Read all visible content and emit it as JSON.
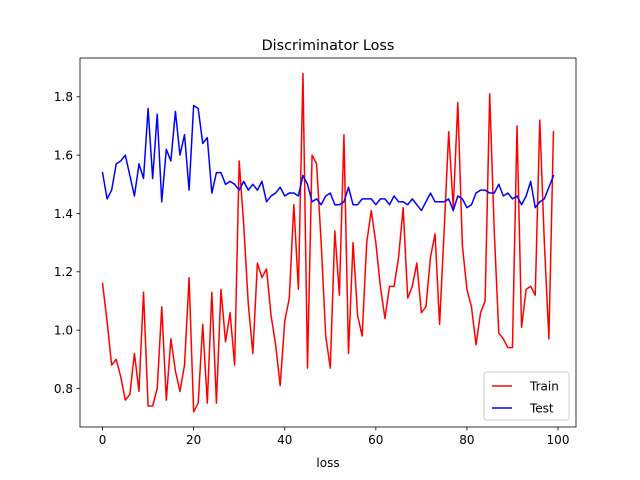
{
  "chart_data": {
    "type": "line",
    "title": "Discriminator Loss",
    "xlabel": "loss",
    "ylabel": "",
    "xlim": [
      -4.95,
      103.95
    ],
    "ylim": [
      0.668,
      1.933
    ],
    "xticks": [
      0,
      20,
      40,
      60,
      80,
      100
    ],
    "yticks": [
      0.8,
      1.0,
      1.2,
      1.4,
      1.6,
      1.8
    ],
    "ytick_labels": [
      "0.8",
      "1.0",
      "1.2",
      "1.4",
      "1.6",
      "1.8"
    ],
    "grid": false,
    "legend_position": "lower right",
    "x": [
      0,
      1,
      2,
      3,
      4,
      5,
      6,
      7,
      8,
      9,
      10,
      11,
      12,
      13,
      14,
      15,
      16,
      17,
      18,
      19,
      20,
      21,
      22,
      23,
      24,
      25,
      26,
      27,
      28,
      29,
      30,
      31,
      32,
      33,
      34,
      35,
      36,
      37,
      38,
      39,
      40,
      41,
      42,
      43,
      44,
      45,
      46,
      47,
      48,
      49,
      50,
      51,
      52,
      53,
      54,
      55,
      56,
      57,
      58,
      59,
      60,
      61,
      62,
      63,
      64,
      65,
      66,
      67,
      68,
      69,
      70,
      71,
      72,
      73,
      74,
      75,
      76,
      77,
      78,
      79,
      80,
      81,
      82,
      83,
      84,
      85,
      86,
      87,
      88,
      89,
      90,
      91,
      92,
      93,
      94,
      95,
      96,
      97,
      98,
      99
    ],
    "series": [
      {
        "name": "Train",
        "color": "#ff0000",
        "values": [
          1.16,
          1.03,
          0.88,
          0.9,
          0.84,
          0.76,
          0.78,
          0.92,
          0.79,
          1.13,
          0.74,
          0.74,
          0.8,
          1.08,
          0.76,
          0.97,
          0.86,
          0.79,
          0.88,
          1.18,
          0.72,
          0.75,
          1.02,
          0.75,
          1.13,
          0.75,
          1.14,
          0.96,
          1.06,
          0.88,
          1.58,
          1.36,
          1.09,
          0.92,
          1.23,
          1.18,
          1.21,
          1.05,
          0.95,
          0.81,
          1.03,
          1.11,
          1.43,
          1.14,
          1.88,
          0.87,
          1.6,
          1.57,
          1.3,
          0.98,
          0.87,
          1.34,
          1.12,
          1.67,
          0.92,
          1.3,
          1.05,
          0.98,
          1.3,
          1.41,
          1.3,
          1.15,
          1.04,
          1.15,
          1.15,
          1.25,
          1.42,
          1.11,
          1.15,
          1.23,
          1.06,
          1.08,
          1.25,
          1.33,
          1.02,
          1.34,
          1.68,
          1.42,
          1.78,
          1.29,
          1.14,
          1.08,
          0.95,
          1.06,
          1.1,
          1.81,
          1.34,
          0.99,
          0.97,
          0.94,
          0.94,
          1.7,
          1.01,
          1.14,
          1.15,
          1.12,
          1.72,
          1.3,
          0.97,
          1.68
        ]
      },
      {
        "name": "Test",
        "color": "#0000ff",
        "values": [
          1.54,
          1.45,
          1.48,
          1.57,
          1.58,
          1.6,
          1.53,
          1.46,
          1.57,
          1.52,
          1.76,
          1.52,
          1.74,
          1.44,
          1.62,
          1.58,
          1.75,
          1.6,
          1.67,
          1.48,
          1.77,
          1.76,
          1.64,
          1.66,
          1.47,
          1.54,
          1.54,
          1.5,
          1.51,
          1.5,
          1.48,
          1.51,
          1.48,
          1.5,
          1.48,
          1.51,
          1.44,
          1.46,
          1.47,
          1.49,
          1.46,
          1.47,
          1.47,
          1.46,
          1.53,
          1.5,
          1.44,
          1.45,
          1.43,
          1.46,
          1.47,
          1.43,
          1.43,
          1.44,
          1.49,
          1.43,
          1.43,
          1.45,
          1.45,
          1.45,
          1.43,
          1.45,
          1.45,
          1.43,
          1.46,
          1.44,
          1.44,
          1.43,
          1.45,
          1.43,
          1.41,
          1.44,
          1.47,
          1.44,
          1.44,
          1.44,
          1.45,
          1.41,
          1.46,
          1.45,
          1.42,
          1.43,
          1.47,
          1.48,
          1.48,
          1.47,
          1.47,
          1.5,
          1.46,
          1.47,
          1.45,
          1.46,
          1.43,
          1.46,
          1.51,
          1.42,
          1.44,
          1.45,
          1.49,
          1.53
        ]
      }
    ]
  }
}
